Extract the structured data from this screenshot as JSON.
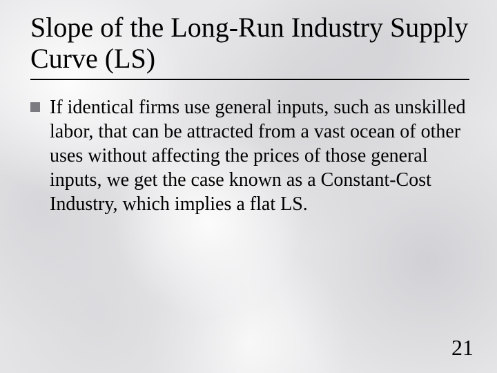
{
  "slide": {
    "title": "Slope of the Long-Run Industry Supply Curve (LS)",
    "bullet_text": "If identical firms use general inputs, such as unskilled labor, that can be attracted from a vast ocean of other uses without affecting the prices of those general inputs, we get the case known as a Constant-Cost Industry, which implies a flat LS.",
    "page_number": "21"
  },
  "style": {
    "title_fontsize_pt": 40,
    "body_fontsize_pt": 28,
    "pagenum_fontsize_pt": 32,
    "font_family": "Times New Roman",
    "text_color": "#000000",
    "bullet_color": "#7a7a80",
    "underline_color": "#000000",
    "background_base": "#e8e7e9"
  }
}
